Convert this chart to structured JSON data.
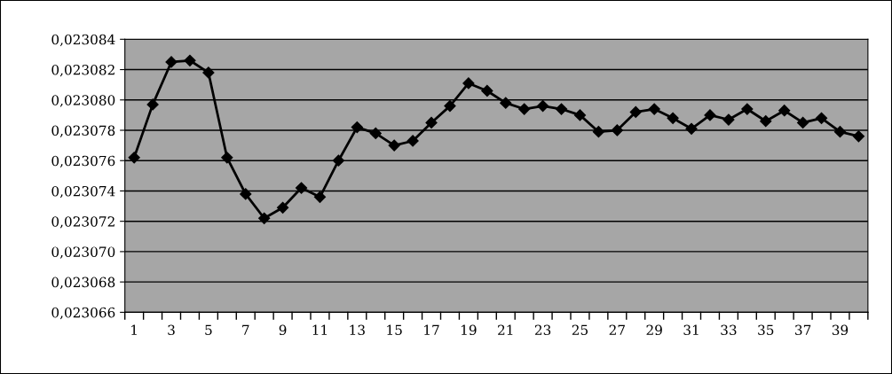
{
  "chart_data": {
    "type": "line",
    "categories": [
      "1",
      null,
      "3",
      null,
      "5",
      null,
      "7",
      null,
      "9",
      null,
      "11",
      null,
      "13",
      null,
      "15",
      null,
      "17",
      null,
      "19",
      null,
      "21",
      null,
      "23",
      null,
      "25",
      null,
      "27",
      null,
      "29",
      null,
      "31",
      null,
      "33",
      null,
      "35",
      null,
      "37",
      null,
      "39",
      null
    ],
    "series": [
      {
        "color": "#000000",
        "values": [
          0.0230762,
          0.0230797,
          0.0230825,
          0.0230826,
          0.0230818,
          0.0230762,
          0.0230738,
          0.0230722,
          0.0230729,
          0.0230742,
          0.0230736,
          0.023076,
          0.0230782,
          0.0230778,
          0.023077,
          0.0230773,
          0.0230785,
          0.0230796,
          0.0230811,
          0.0230806,
          0.0230798,
          0.0230794,
          0.0230796,
          0.0230794,
          0.023079,
          0.0230779,
          0.023078,
          0.0230792,
          0.0230794,
          0.0230788,
          0.0230781,
          0.023079,
          0.0230787,
          0.0230794,
          0.0230786,
          0.0230793,
          0.0230785,
          0.0230788,
          0.0230779,
          0.0230776
        ]
      }
    ],
    "ylim": [
      0.023066,
      0.023084
    ],
    "yticks": [
      {
        "value": 0.023066,
        "label": "0,023066"
      },
      {
        "value": 0.023068,
        "label": "0,023068"
      },
      {
        "value": 0.02307,
        "label": "0,023070"
      },
      {
        "value": 0.023072,
        "label": "0,023072"
      },
      {
        "value": 0.023074,
        "label": "0,023074"
      },
      {
        "value": 0.023076,
        "label": "0,023076"
      },
      {
        "value": 0.023078,
        "label": "0,023078"
      },
      {
        "value": 0.02308,
        "label": "0,023080"
      },
      {
        "value": 0.023082,
        "label": "0,023082"
      },
      {
        "value": 0.023084,
        "label": "0,023084"
      }
    ],
    "grid": "y",
    "legend": false,
    "marker": "diamond",
    "line_style": "solid"
  }
}
